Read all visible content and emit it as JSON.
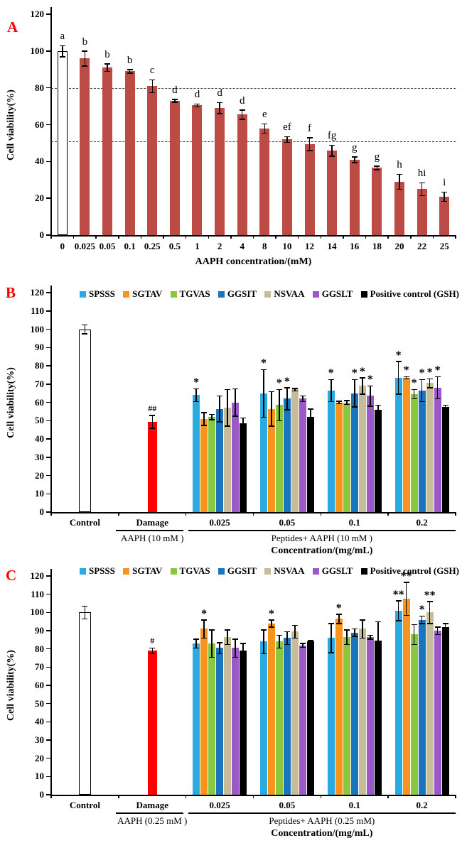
{
  "figure": {
    "panels": [
      {
        "label": "A"
      },
      {
        "label": "B"
      },
      {
        "label": "C"
      }
    ],
    "panel_label_color": "#ff0000"
  },
  "chart_data": [
    {
      "id": "A",
      "type": "bar",
      "ylabel": "Cell viability(%)",
      "xlabel": "AAPH concentration/(mM)",
      "ylim": [
        0,
        120
      ],
      "ytick_step": 20,
      "grid": false,
      "reference_dashed_lines": [
        80,
        51
      ],
      "categories": [
        "0",
        "0.025",
        "0.05",
        "0.1",
        "0.25",
        "0.5",
        "1",
        "2",
        "4",
        "8",
        "10",
        "12",
        "14",
        "16",
        "18",
        "20",
        "22",
        "25"
      ],
      "values": [
        100,
        96,
        91,
        89,
        81,
        73,
        70.5,
        69,
        65.5,
        58,
        52,
        49.5,
        46,
        41,
        36.5,
        29,
        25,
        21
      ],
      "errors": [
        3,
        4,
        2,
        1,
        3.5,
        0.7,
        0.7,
        3,
        2.5,
        2.5,
        1.5,
        3.5,
        3,
        1.5,
        1,
        4,
        3.5,
        2.5
      ],
      "letters": [
        "a",
        "b",
        "b",
        "b",
        "c",
        "d",
        "d",
        "d",
        "d",
        "e",
        "ef",
        "f",
        "fg",
        "g",
        "g",
        "h",
        "hi",
        "i"
      ],
      "bar_color": "#bd4b45",
      "control_bar_color": "#ffffff"
    },
    {
      "id": "B",
      "type": "grouped-bar",
      "ylabel": "Cell viability(%)",
      "xlabel": "Concentration/(mg/mL)",
      "ylim": [
        0,
        120
      ],
      "ytick_step": 10,
      "grid": false,
      "legend_position": "top",
      "series_names": [
        "SPSSS",
        "SGTAV",
        "TGVAS",
        "GGSIT",
        "NSVAA",
        "GGSLT",
        "Positive control (GSH)"
      ],
      "series_colors": [
        "#29abe2",
        "#f7941e",
        "#8cc63e",
        "#1b75bc",
        "#c4bd97",
        "#9b59c8",
        "#000000"
      ],
      "control": {
        "label": "Control",
        "value": 100,
        "error": 2.5,
        "color": "#ffffff"
      },
      "damage": {
        "label": "Damage",
        "value": 49.5,
        "error": 3.5,
        "sig": "##",
        "color": "#ff0000",
        "sublabel": "AAPH (10 mM )"
      },
      "groups_sublabel": "Peptides+ AAPH (10 mM )",
      "groups": [
        {
          "label": "0.025",
          "values": [
            64,
            51,
            52,
            56.5,
            57,
            60,
            48.5
          ],
          "errors": [
            3.5,
            3.5,
            1.5,
            7,
            10,
            7.5,
            3
          ],
          "sig": [
            "*",
            "",
            "",
            "",
            "",
            "",
            ""
          ]
        },
        {
          "label": "0.05",
          "values": [
            65,
            56.5,
            58.5,
            62,
            67,
            62,
            52
          ],
          "errors": [
            13,
            9.5,
            8.5,
            6,
            0.7,
            1.5,
            4.5
          ],
          "sig": [
            "*",
            "",
            "*",
            "*",
            "",
            "",
            ""
          ]
        },
        {
          "label": "0.1",
          "values": [
            66.5,
            60,
            60,
            65,
            69,
            63.5,
            56
          ],
          "errors": [
            6,
            0.7,
            1,
            7.5,
            4.5,
            5.5,
            2.5
          ],
          "sig": [
            "*",
            "",
            "",
            "*",
            "*",
            "*",
            ""
          ]
        },
        {
          "label": "0.2",
          "values": [
            73.5,
            73.5,
            64.5,
            66.5,
            70.5,
            68,
            57.5
          ],
          "errors": [
            9,
            0.5,
            2.5,
            6,
            2.5,
            6,
            1
          ],
          "sig": [
            "*",
            "*",
            "*",
            "*",
            "*",
            "*",
            ""
          ]
        }
      ]
    },
    {
      "id": "C",
      "type": "grouped-bar",
      "ylabel": "Cell viability(%)",
      "xlabel": "Concentration/(mg/mL)",
      "ylim": [
        0,
        120
      ],
      "ytick_step": 10,
      "grid": false,
      "legend_position": "top",
      "series_names": [
        "SPSSS",
        "SGTAV",
        "TGVAS",
        "GGSIT",
        "NSVAA",
        "GGSLT",
        "Positive control (GSH)"
      ],
      "series_colors": [
        "#29abe2",
        "#f7941e",
        "#8cc63e",
        "#1b75bc",
        "#c4bd97",
        "#9b59c8",
        "#000000"
      ],
      "control": {
        "label": "Control",
        "value": 100,
        "error": 3.5,
        "color": "#ffffff"
      },
      "damage": {
        "label": "Damage",
        "value": 79,
        "error": 1.5,
        "sig": "#",
        "color": "#ff0000",
        "sublabel": "AAPH (0.25 mM )"
      },
      "groups_sublabel": "Peptides+ AAPH (0.25 mM)",
      "groups": [
        {
          "label": "0.025",
          "values": [
            83,
            91,
            83,
            80.5,
            86.5,
            80.5,
            79
          ],
          "errors": [
            2.5,
            5,
            7.5,
            3,
            4,
            5,
            4
          ],
          "sig": [
            "",
            "*",
            "",
            "",
            "",
            "",
            ""
          ]
        },
        {
          "label": "0.05",
          "values": [
            84,
            94,
            84,
            86,
            89.5,
            82,
            84
          ],
          "errors": [
            6.5,
            2,
            3.5,
            3.5,
            3.5,
            1,
            0.7
          ],
          "sig": [
            "",
            "*",
            "",
            "",
            "",
            "",
            ""
          ]
        },
        {
          "label": "0.1",
          "values": [
            86,
            96.5,
            86.5,
            89,
            91,
            86.5,
            84.5
          ],
          "errors": [
            8,
            2.5,
            4,
            2,
            5,
            1,
            10.5
          ],
          "sig": [
            "",
            "*",
            "",
            "",
            "",
            "",
            ""
          ]
        },
        {
          "label": "0.2",
          "values": [
            101,
            107.5,
            88,
            96,
            100,
            90,
            92
          ],
          "errors": [
            5.5,
            9,
            5.5,
            2,
            6,
            2,
            2
          ],
          "sig": [
            "**",
            "**",
            "",
            "*",
            "**",
            "",
            ""
          ]
        }
      ]
    }
  ]
}
